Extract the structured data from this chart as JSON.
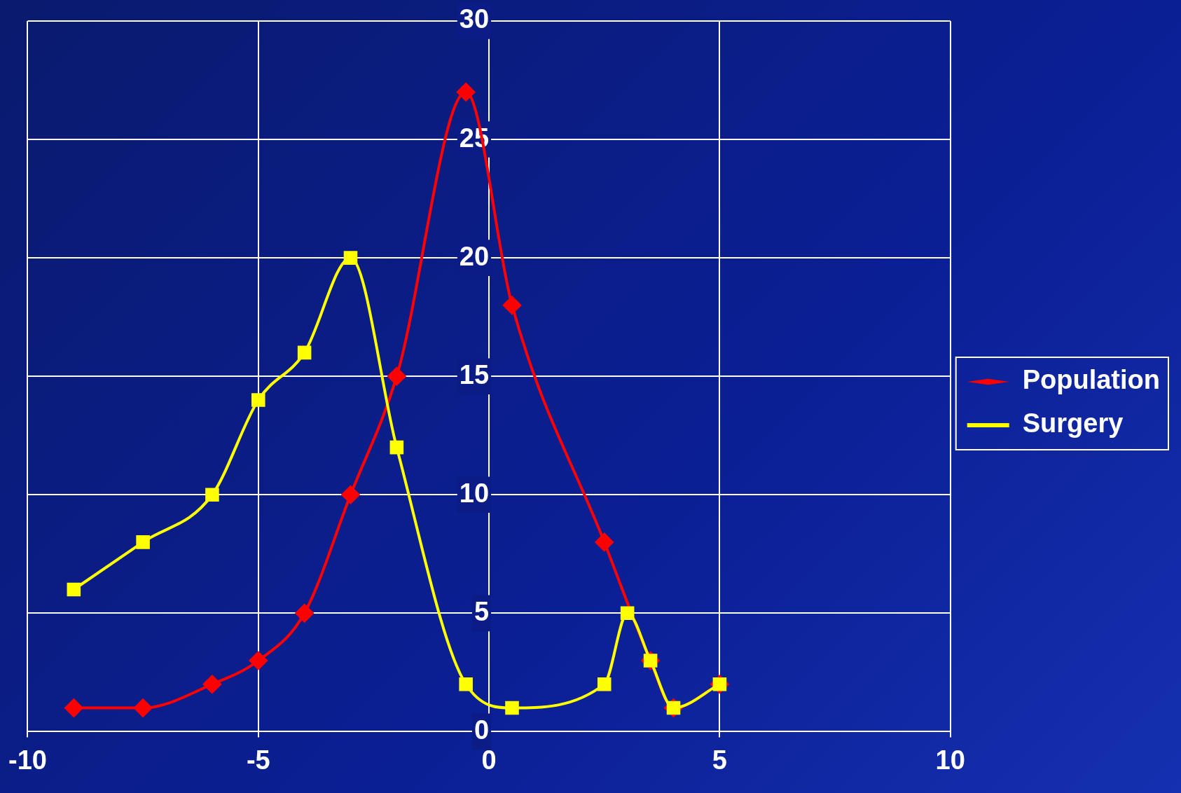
{
  "chart_data": {
    "type": "line",
    "xlim": [
      -10,
      10
    ],
    "xticks": [
      -10,
      -5,
      0,
      5,
      10
    ],
    "ylim": [
      0,
      30
    ],
    "yticks": [
      0,
      5,
      10,
      15,
      20,
      25,
      30
    ],
    "grid": true,
    "legend": "right",
    "series": [
      {
        "name": "Population",
        "color": "#ff0000",
        "marker": "diamond",
        "x": [
          -9,
          -7.5,
          -6,
          -5,
          -4,
          -3,
          -2,
          -0.5,
          0.5,
          2.5,
          3.5,
          4,
          5
        ],
        "values": [
          1,
          1,
          2,
          3,
          5,
          10,
          15,
          27,
          18,
          8,
          3,
          1,
          2
        ]
      },
      {
        "name": "Surgery",
        "color": "#ffff00",
        "marker": "square",
        "x": [
          -9,
          -7.5,
          -6,
          -5,
          -4,
          -3,
          -2,
          -0.5,
          0.5,
          2.5,
          3,
          3.5,
          4,
          5
        ],
        "values": [
          6,
          8,
          10,
          14,
          16,
          20,
          12,
          2,
          1,
          2,
          5,
          3,
          1,
          2
        ]
      }
    ]
  }
}
